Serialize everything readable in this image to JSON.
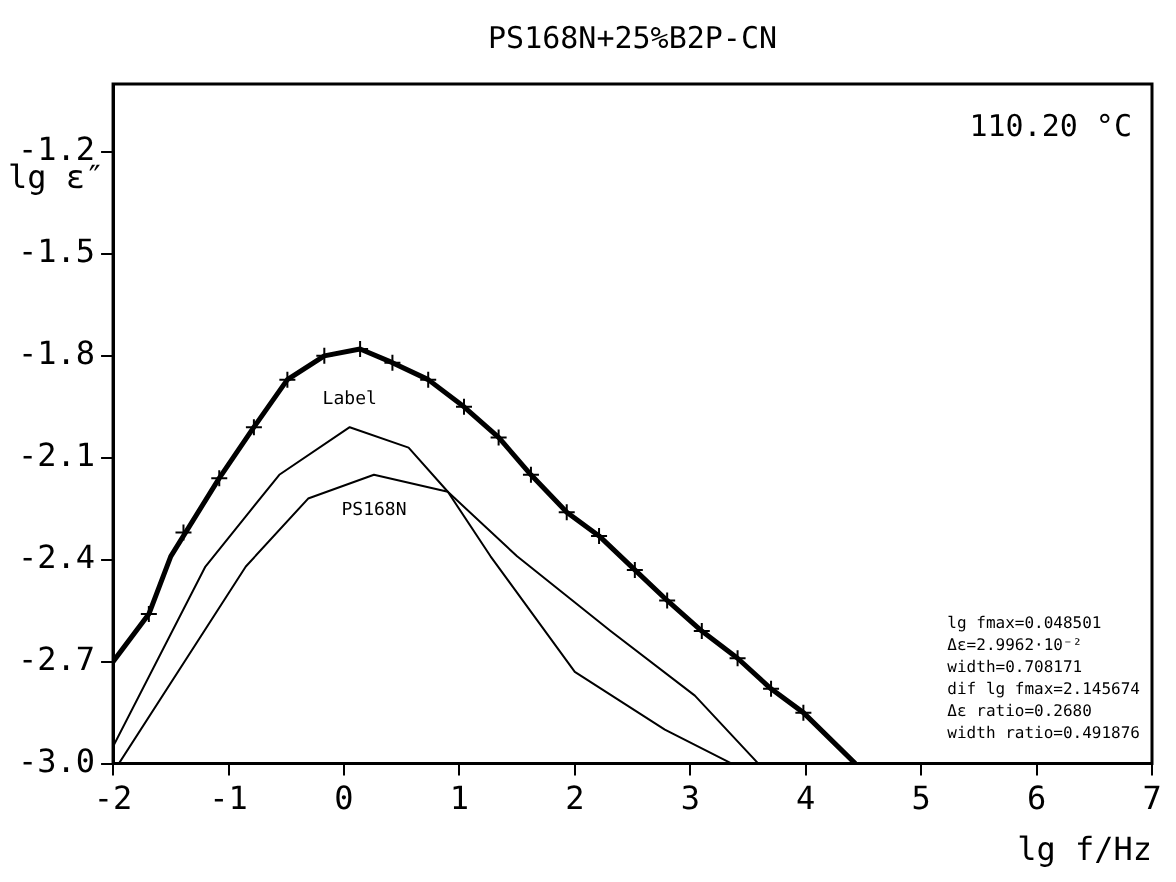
{
  "chart_data": {
    "type": "line",
    "title": "PS168N+25%B2P-CN",
    "xlabel": "lg f/Hz",
    "ylabel": "lg ε″",
    "xlim": [
      -2,
      7
    ],
    "xticks": [
      -2,
      -1,
      0,
      1,
      2,
      3,
      4,
      5,
      6,
      7
    ],
    "ylim": [
      -3.0,
      -1.0
    ],
    "yticks": [
      {
        "value": -3.0,
        "label": "-3.0"
      },
      -2.7,
      -2.4,
      -2.1,
      -1.8,
      -1.5,
      -1.2
    ],
    "grid": false,
    "legend": false,
    "annotations": [
      "110.20 °C",
      "lg fmax=0.048501",
      "Δε=2.9962·10⁻²",
      "width=0.708171",
      "dif lg fmax=2.145674",
      "Δε ratio=0.2680",
      "width ratio=0.491876"
    ],
    "series": [
      {
        "color": "#000000",
        "x": [
          -2,
          -1.69,
          -1.5,
          -1.08,
          -0.78,
          -0.49,
          -0.17,
          0.14,
          0.42,
          0.73,
          1.04,
          1.34,
          1.62,
          1.93,
          2.21,
          2.52,
          2.8,
          3.1,
          3.41,
          3.7,
          3.98,
          4.43
        ],
        "values": [
          -2.7,
          -2.56,
          -2.39,
          -2.16,
          -2.01,
          -1.87,
          -1.8,
          -1.78,
          -1.82,
          -1.87,
          -1.95,
          -2.04,
          -2.15,
          -2.26,
          -2.33,
          -2.43,
          -2.52,
          -2.61,
          -2.69,
          -2.78,
          -2.85,
          -3.0
        ]
      },
      {
        "name": "Label",
        "color": "#000000",
        "x": [
          -2,
          -1.2,
          -0.56,
          0.05,
          0.56,
          0.9,
          1.27,
          2.0,
          2.78,
          3.36
        ],
        "values": [
          -2.95,
          -2.42,
          -2.15,
          -2.01,
          -2.07,
          -2.2,
          -2.39,
          -2.73,
          -2.9,
          -3.0
        ]
      },
      {
        "name": "PS168N",
        "color": "#000000",
        "x": [
          -1.95,
          -0.85,
          -0.31,
          0.26,
          0.9,
          1.5,
          2.31,
          3.04,
          3.59
        ],
        "values": [
          -3.0,
          -2.42,
          -2.22,
          -2.15,
          -2.2,
          -2.39,
          -2.61,
          -2.8,
          -3.0
        ]
      },
      {
        "type": "scatter",
        "marker": "cross",
        "color": "#000000",
        "x": [
          -1.69,
          -1.39,
          -1.08,
          -0.78,
          -0.49,
          -0.17,
          0.14,
          0.42,
          0.73,
          1.04,
          1.34,
          1.62,
          1.93,
          2.21,
          2.52,
          2.8,
          3.1,
          3.41,
          3.7,
          3.98
        ],
        "values": [
          -2.56,
          -2.32,
          -2.16,
          -2.01,
          -1.87,
          -1.8,
          -1.78,
          -1.82,
          -1.87,
          -1.95,
          -2.04,
          -2.15,
          -2.26,
          -2.33,
          -2.43,
          -2.52,
          -2.61,
          -2.69,
          -2.78,
          -2.85
        ]
      }
    ]
  }
}
